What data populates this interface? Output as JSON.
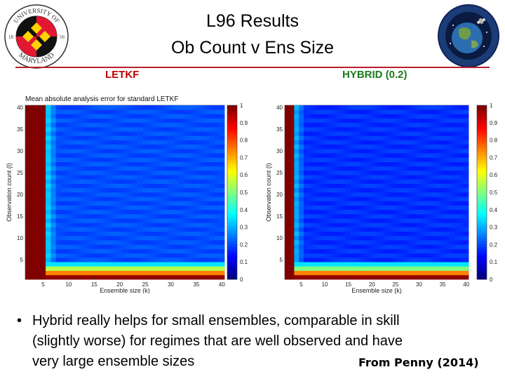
{
  "header": {
    "title_line1": "L96 Results",
    "title_line2": "Ob Count v Ens Size",
    "rule_color": "#b8202f"
  },
  "logos": {
    "left": {
      "name": "university-of-maryland-seal",
      "text_top": "UNIVERSITY OF",
      "text_bottom": "MARYLAND",
      "year_left": "18",
      "year_right": "56"
    },
    "right": {
      "name": "jcsda-seal"
    }
  },
  "panels": {
    "left_label": "LETKF",
    "right_label": "HYBRID (0.2)",
    "left_label_color": "#c00000",
    "right_label_color": "#1a7a1a"
  },
  "bullet": {
    "line1": "Hybrid really helps for small ensembles, comparable in skill",
    "line2": "(slightly worse) for regimes that are well observed and have",
    "line3": "very large ensemble sizes",
    "citation": "From Penny (2014)"
  },
  "chart_data": [
    {
      "type": "heatmap",
      "title": "Mean absolute analysis error for standard LETKF",
      "xlabel": "Ensemble size (k)",
      "ylabel": "Observation count (l)",
      "x_ticks": [
        5,
        10,
        15,
        20,
        25,
        30,
        35,
        40
      ],
      "y_ticks": [
        5,
        10,
        15,
        20,
        25,
        30,
        35,
        40
      ],
      "colorbar_ticks": [
        0,
        0.1,
        0.2,
        0.3,
        0.4,
        0.5,
        0.6,
        0.7,
        0.8,
        0.9,
        1
      ],
      "xlim": [
        2,
        40
      ],
      "ylim": [
        1,
        40
      ],
      "clim": [
        0,
        1
      ],
      "regions": {
        "diverged_max_k": 5,
        "blank_min_l": 5,
        "blank_max_l": 14,
        "blank_max_k": 4,
        "plateau_value": 0.2,
        "low_obs_value": 0.55
      }
    },
    {
      "type": "heatmap",
      "title": "",
      "xlabel": "Ensemble size (k)",
      "ylabel": "Observation count (l)",
      "x_ticks": [
        5,
        10,
        15,
        20,
        25,
        30,
        35,
        40
      ],
      "y_ticks": [
        5,
        10,
        15,
        20,
        25,
        30,
        35,
        40
      ],
      "colorbar_ticks": [
        0,
        0.1,
        0.2,
        0.3,
        0.4,
        0.5,
        0.6,
        0.7,
        0.8,
        0.9,
        1
      ],
      "xlim": [
        2,
        40
      ],
      "ylim": [
        1,
        40
      ],
      "clim": [
        0,
        1
      ],
      "regions": {
        "diverged_max_k": 3,
        "blank_min_l": 2,
        "blank_max_l": 4,
        "blank_max_k": 3,
        "plateau_value": 0.17,
        "low_obs_value": 0.5
      }
    }
  ]
}
